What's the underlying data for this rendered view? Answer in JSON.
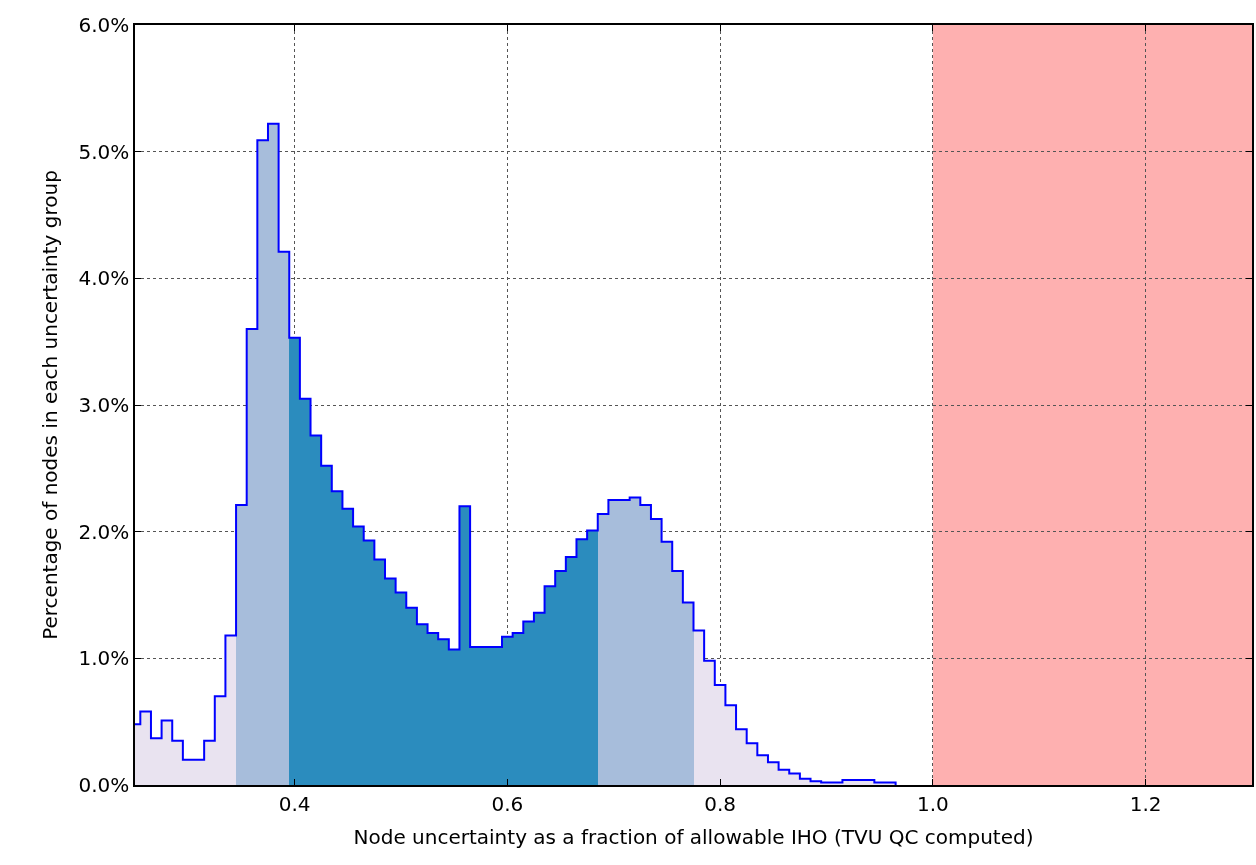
{
  "chart_data": {
    "type": "histogram",
    "xlabel": "Node uncertainty as a fraction of allowable IHO (TVU QC computed)",
    "ylabel": "Percentage of nodes in each uncertainty group",
    "bins": [
      0.25,
      0.255,
      0.265,
      0.275,
      0.285,
      0.295,
      0.305,
      0.315,
      0.325,
      0.335,
      0.345,
      0.355,
      0.365,
      0.375,
      0.385,
      0.395,
      0.405,
      0.415,
      0.425,
      0.435,
      0.445,
      0.455,
      0.465,
      0.475,
      0.485,
      0.495,
      0.505,
      0.515,
      0.525,
      0.535,
      0.545,
      0.555,
      0.565,
      0.575,
      0.585,
      0.595,
      0.605,
      0.615,
      0.625,
      0.635,
      0.645,
      0.655,
      0.665,
      0.675,
      0.685,
      0.695,
      0.705,
      0.715,
      0.725,
      0.735,
      0.745,
      0.755,
      0.765,
      0.775,
      0.785,
      0.795,
      0.805,
      0.815,
      0.825,
      0.835,
      0.845,
      0.855,
      0.865,
      0.875,
      0.885,
      0.895,
      0.905,
      0.915,
      0.925,
      0.935,
      0.945,
      0.955,
      0.965
    ],
    "values": [
      0.48,
      0.58,
      0.37,
      0.51,
      0.35,
      0.2,
      0.2,
      0.35,
      0.7,
      1.18,
      2.21,
      3.6,
      5.09,
      5.22,
      4.21,
      3.53,
      3.05,
      2.76,
      2.52,
      2.32,
      2.18,
      2.04,
      1.93,
      1.78,
      1.63,
      1.52,
      1.4,
      1.27,
      1.2,
      1.15,
      1.07,
      2.2,
      1.09,
      1.09,
      1.09,
      1.17,
      1.2,
      1.29,
      1.36,
      1.57,
      1.69,
      1.8,
      1.94,
      2.01,
      2.14,
      2.25,
      2.25,
      2.27,
      2.21,
      2.1,
      1.92,
      1.69,
      1.44,
      1.22,
      0.98,
      0.79,
      0.63,
      0.44,
      0.33,
      0.235,
      0.18,
      0.12,
      0.09,
      0.05,
      0.03,
      0.02,
      0.02,
      0.04,
      0.04,
      0.04,
      0.02,
      0.02
    ],
    "series": [
      {
        "type": "step",
        "color": "#0000ff",
        "x": [
          0.25,
          0.255,
          0.265,
          0.275,
          0.285,
          0.295,
          0.305,
          0.315,
          0.325,
          0.335,
          0.345,
          0.355,
          0.365,
          0.375,
          0.385,
          0.395,
          0.405,
          0.415,
          0.425,
          0.435,
          0.445,
          0.455,
          0.465,
          0.475,
          0.485,
          0.495,
          0.505,
          0.515,
          0.525,
          0.535,
          0.545,
          0.555,
          0.565,
          0.575,
          0.585,
          0.595,
          0.605,
          0.615,
          0.625,
          0.635,
          0.645,
          0.655,
          0.665,
          0.675,
          0.685,
          0.695,
          0.705,
          0.715,
          0.725,
          0.735,
          0.745,
          0.755,
          0.765,
          0.775,
          0.785,
          0.795,
          0.805,
          0.815,
          0.825,
          0.835,
          0.845,
          0.855,
          0.865,
          0.875,
          0.885,
          0.895,
          0.905,
          0.915,
          0.925,
          0.935,
          0.945,
          0.955,
          0.965
        ],
        "values": [
          0.48,
          0.58,
          0.37,
          0.51,
          0.35,
          0.2,
          0.2,
          0.35,
          0.7,
          1.18,
          2.21,
          3.6,
          5.09,
          5.22,
          4.21,
          3.53,
          3.05,
          2.76,
          2.52,
          2.32,
          2.18,
          2.04,
          1.93,
          1.78,
          1.63,
          1.52,
          1.4,
          1.27,
          1.2,
          1.15,
          1.07,
          2.2,
          1.09,
          1.09,
          1.09,
          1.17,
          1.2,
          1.29,
          1.36,
          1.57,
          1.69,
          1.8,
          1.94,
          2.01,
          2.14,
          2.25,
          2.25,
          2.27,
          2.21,
          2.1,
          1.92,
          1.69,
          1.44,
          1.22,
          0.98,
          0.79,
          0.63,
          0.44,
          0.33,
          0.235,
          0.18,
          0.12,
          0.09,
          0.05,
          0.03,
          0.02,
          0.02,
          0.04,
          0.04,
          0.04,
          0.02,
          0.02,
          0
        ]
      }
    ],
    "colors": [
      "#e9e3f0",
      "#e9e3f0",
      "#e9e3f0",
      "#e9e3f0",
      "#e9e3f0",
      "#e9e3f0",
      "#e9e3f0",
      "#e9e3f0",
      "#e9e3f0",
      "#e9e3f0",
      "#a7bddb",
      "#a7bddb",
      "#a7bddb",
      "#a7bddb",
      "#a7bddb",
      "#2b8cbe",
      "#2b8cbe",
      "#2b8cbe",
      "#2b8cbe",
      "#2b8cbe",
      "#2b8cbe",
      "#2b8cbe",
      "#2b8cbe",
      "#2b8cbe",
      "#2b8cbe",
      "#2b8cbe",
      "#2b8cbe",
      "#2b8cbe",
      "#2b8cbe",
      "#2b8cbe",
      "#2b8cbe",
      "#2b8cbe",
      "#2b8cbe",
      "#2b8cbe",
      "#2b8cbe",
      "#2b8cbe",
      "#2b8cbe",
      "#2b8cbe",
      "#2b8cbe",
      "#2b8cbe",
      "#2b8cbe",
      "#2b8cbe",
      "#2b8cbe",
      "#2b8cbe",
      "#a7bddb",
      "#a7bddb",
      "#a7bddb",
      "#a7bddb",
      "#a7bddb",
      "#a7bddb",
      "#a7bddb",
      "#a7bddb",
      "#a7bddb",
      "#e9e3f0",
      "#e9e3f0",
      "#e9e3f0",
      "#e9e3f0",
      "#e9e3f0",
      "#e9e3f0",
      "#e9e3f0",
      "#e9e3f0",
      "#e9e3f0",
      "#e9e3f0",
      "#e9e3f0",
      "#e9e3f0",
      "#e9e3f0",
      "#e9e3f0",
      "#e9e3f0",
      "#e9e3f0",
      "#e9e3f0",
      "#e9e3f0",
      "#e9e3f0"
    ],
    "bands": [
      {
        "axis": "x",
        "from": 1.0,
        "to": 1.3,
        "color": "#feb0b0"
      }
    ],
    "xlim": [
      0.25,
      1.3
    ],
    "xticks": [
      0.4,
      0.6,
      0.8,
      {
        "value": 1.0,
        "label": "1.0"
      },
      1.2
    ],
    "ylim": [
      0,
      6
    ],
    "yticks": [
      {
        "value": 0,
        "label": "0.0%"
      },
      {
        "value": 1,
        "label": "1.0%"
      },
      {
        "value": 2,
        "label": "2.0%"
      },
      {
        "value": 3,
        "label": "3.0%"
      },
      {
        "value": 4,
        "label": "4.0%"
      },
      {
        "value": 5,
        "label": "5.0%"
      },
      {
        "value": 6,
        "label": "6.0%"
      }
    ],
    "grid": true
  }
}
